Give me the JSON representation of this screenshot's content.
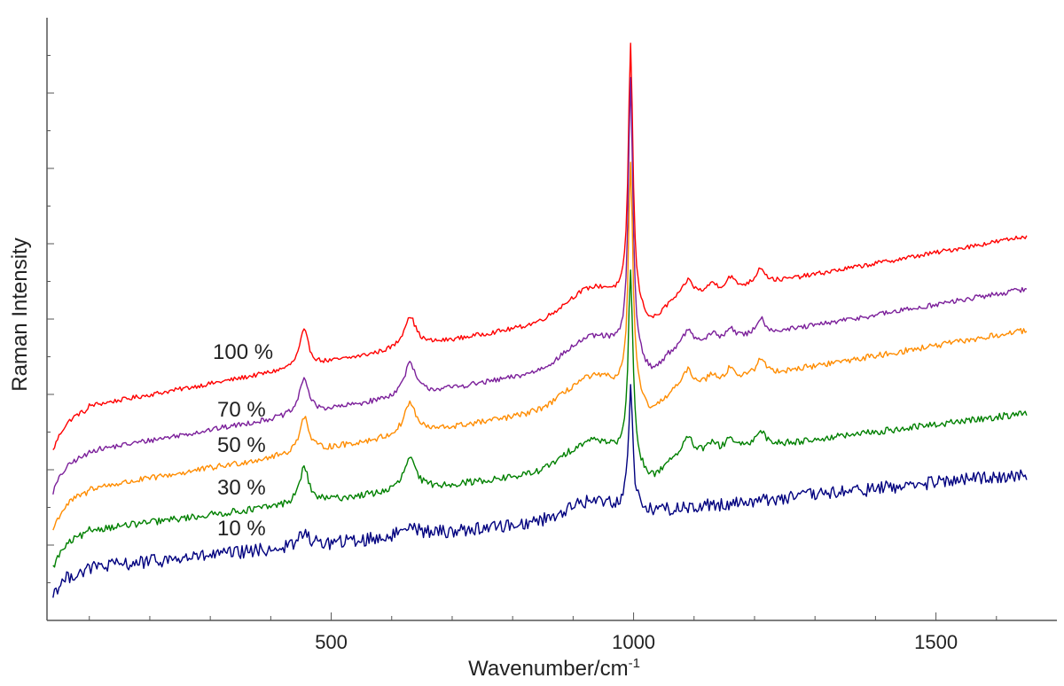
{
  "chart_data": {
    "type": "line",
    "title": "",
    "xlabel": "Wavenumber/cm",
    "xlabel_sup": "-1",
    "ylabel": "Raman Intensity",
    "xlim": [
      30,
      1700
    ],
    "ylim": [
      0,
      8
    ],
    "x_ticks": [
      500,
      1000,
      1500
    ],
    "x_tick_labels": [
      "500",
      "1000",
      "1500"
    ],
    "y_tick_labels_shown": false,
    "grid": false,
    "legend": "none (inline labels at left)",
    "peaks_cm-1": [
      455,
      630,
      995,
      1090,
      1160,
      1210
    ],
    "series": [
      {
        "name": "100 %",
        "color": "#ff0000",
        "x": [
          40,
          100,
          455,
          630,
          985,
          995,
          1010,
          1090,
          1210,
          1650
        ],
        "values": [
          2.25,
          2.85,
          3.85,
          3.8,
          5.0,
          7.6,
          4.5,
          4.8,
          4.75,
          5.1
        ]
      },
      {
        "name": "70 %",
        "color": "#7b1f9a",
        "x": [
          40,
          100,
          455,
          630,
          985,
          995,
          1010,
          1090,
          1210,
          1650
        ],
        "values": [
          1.7,
          2.25,
          3.2,
          3.15,
          4.25,
          7.1,
          3.8,
          4.1,
          4.05,
          4.4
        ]
      },
      {
        "name": "50 %",
        "color": "#ff8c00",
        "x": [
          40,
          100,
          455,
          630,
          985,
          995,
          1010,
          1090,
          1210,
          1650
        ],
        "values": [
          1.2,
          1.75,
          2.6,
          2.55,
          3.6,
          6.0,
          3.35,
          3.6,
          3.55,
          3.85
        ]
      },
      {
        "name": "30 %",
        "color": "#008000",
        "x": [
          40,
          100,
          455,
          630,
          985,
          995,
          1010,
          1090,
          1210,
          1650
        ],
        "values": [
          0.7,
          1.2,
          1.9,
          1.85,
          2.6,
          4.6,
          2.3,
          2.5,
          2.45,
          2.75
        ]
      },
      {
        "name": "10 %",
        "color": "#00007f",
        "x": [
          40,
          100,
          455,
          630,
          985,
          995,
          1010,
          1650
        ],
        "values": [
          0.35,
          0.7,
          1.05,
          1.05,
          1.6,
          3.0,
          1.4,
          1.95
        ]
      }
    ]
  }
}
